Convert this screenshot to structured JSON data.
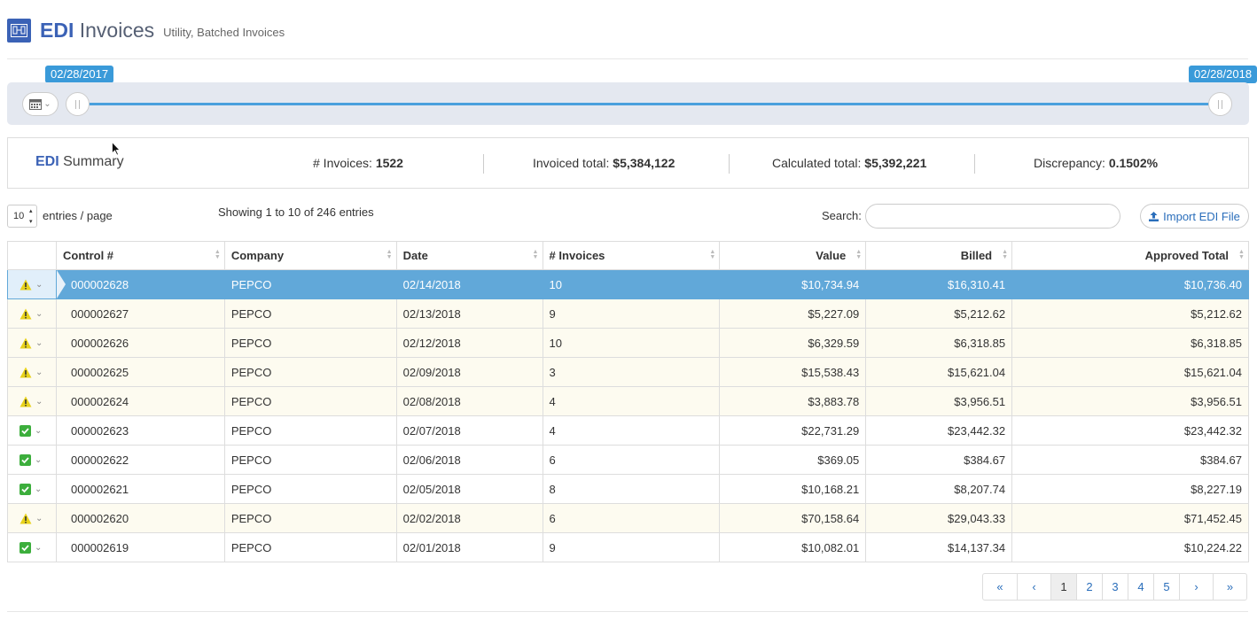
{
  "header": {
    "title_bold": "EDI",
    "title_rest": "Invoices",
    "subtitle": "Utility, Batched Invoices"
  },
  "slider": {
    "start_date": "02/28/2017",
    "end_date": "02/28/2018"
  },
  "summary": {
    "title_bold": "EDI",
    "title_rest": "Summary",
    "invoices_label": "# Invoices:",
    "invoices_value": "1522",
    "invoiced_label": "Invoiced total:",
    "invoiced_value": "$5,384,122",
    "calculated_label": "Calculated total:",
    "calculated_value": "$5,392,221",
    "discrepancy_label": "Discrepancy:",
    "discrepancy_value": "0.1502%"
  },
  "controls": {
    "page_length": "10",
    "page_length_label": "entries / page",
    "info": "Showing 1 to 10 of 246 entries",
    "search_label": "Search:",
    "search_value": "",
    "import_label": "Import EDI File"
  },
  "table": {
    "columns": [
      "Control #",
      "Company",
      "Date",
      "# Invoices",
      "Value",
      "Billed",
      "Approved Total"
    ],
    "rows": [
      {
        "status": "warning",
        "control": "000002628",
        "company": "PEPCO",
        "date": "02/14/2018",
        "invoices": "10",
        "value": "$10,734.94",
        "billed": "$16,310.41",
        "approved": "$10,736.40"
      },
      {
        "status": "warning",
        "control": "000002627",
        "company": "PEPCO",
        "date": "02/13/2018",
        "invoices": "9",
        "value": "$5,227.09",
        "billed": "$5,212.62",
        "approved": "$5,212.62"
      },
      {
        "status": "warning",
        "control": "000002626",
        "company": "PEPCO",
        "date": "02/12/2018",
        "invoices": "10",
        "value": "$6,329.59",
        "billed": "$6,318.85",
        "approved": "$6,318.85"
      },
      {
        "status": "warning",
        "control": "000002625",
        "company": "PEPCO",
        "date": "02/09/2018",
        "invoices": "3",
        "value": "$15,538.43",
        "billed": "$15,621.04",
        "approved": "$15,621.04"
      },
      {
        "status": "warning",
        "control": "000002624",
        "company": "PEPCO",
        "date": "02/08/2018",
        "invoices": "4",
        "value": "$3,883.78",
        "billed": "$3,956.51",
        "approved": "$3,956.51"
      },
      {
        "status": "ok",
        "control": "000002623",
        "company": "PEPCO",
        "date": "02/07/2018",
        "invoices": "4",
        "value": "$22,731.29",
        "billed": "$23,442.32",
        "approved": "$23,442.32"
      },
      {
        "status": "ok",
        "control": "000002622",
        "company": "PEPCO",
        "date": "02/06/2018",
        "invoices": "6",
        "value": "$369.05",
        "billed": "$384.67",
        "approved": "$384.67"
      },
      {
        "status": "ok",
        "control": "000002621",
        "company": "PEPCO",
        "date": "02/05/2018",
        "invoices": "8",
        "value": "$10,168.21",
        "billed": "$8,207.74",
        "approved": "$8,227.19"
      },
      {
        "status": "warning",
        "control": "000002620",
        "company": "PEPCO",
        "date": "02/02/2018",
        "invoices": "6",
        "value": "$70,158.64",
        "billed": "$29,043.33",
        "approved": "$71,452.45"
      },
      {
        "status": "ok",
        "control": "000002619",
        "company": "PEPCO",
        "date": "02/01/2018",
        "invoices": "9",
        "value": "$10,082.01",
        "billed": "$14,137.34",
        "approved": "$10,224.22"
      }
    ]
  },
  "pagination": {
    "first": "«",
    "prev": "‹",
    "pages": [
      "1",
      "2",
      "3",
      "4",
      "5"
    ],
    "next": "›",
    "last": "»",
    "active": "1"
  },
  "colors": {
    "accent": "#3b62b6",
    "slider_track": "#4aa0dd",
    "selected_row": "#61a8d9",
    "warning": "#e8d21b",
    "ok": "#3cae3c"
  }
}
